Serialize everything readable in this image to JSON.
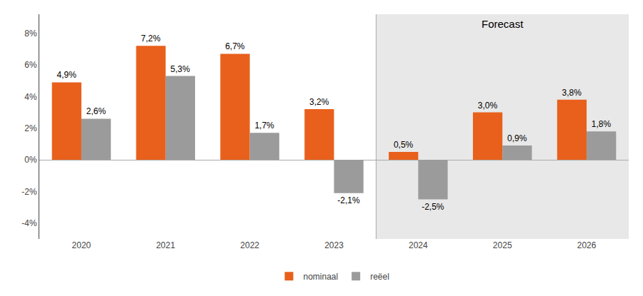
{
  "chart_data": {
    "type": "bar",
    "categories": [
      "2020",
      "2021",
      "2022",
      "2023",
      "2024",
      "2025",
      "2026"
    ],
    "series": [
      {
        "name": "nominaal",
        "color": "#E8601C",
        "values": [
          4.9,
          7.2,
          6.7,
          3.2,
          0.5,
          3.0,
          3.8
        ],
        "value_labels": [
          "4,9%",
          "7,2%",
          "6,7%",
          "3,2%",
          "0,5%",
          "3,0%",
          "3,8%"
        ]
      },
      {
        "name": "reëel",
        "color": "#9B9B9B",
        "values": [
          2.6,
          5.3,
          1.7,
          -2.1,
          -2.5,
          0.9,
          1.8
        ],
        "value_labels": [
          "2,6%",
          "5,3%",
          "1,7%",
          "-2,1%",
          "-2,5%",
          "0,9%",
          "1,8%"
        ]
      }
    ],
    "ylim": [
      -5.0,
      9.2
    ],
    "yticks": [
      {
        "value": -4,
        "label": "-4%"
      },
      {
        "value": -2,
        "label": "-2%"
      },
      {
        "value": 0,
        "label": "0%"
      },
      {
        "value": 2,
        "label": "2%"
      },
      {
        "value": 4,
        "label": "4%"
      },
      {
        "value": 6,
        "label": "6%"
      },
      {
        "value": 8,
        "label": "8%"
      }
    ],
    "annotations": [
      {
        "text": "Forecast",
        "start": "2024",
        "end": "2026",
        "color": "#E8E8E8"
      }
    ],
    "data_labels": true,
    "grid": false,
    "legend": "bottom"
  }
}
